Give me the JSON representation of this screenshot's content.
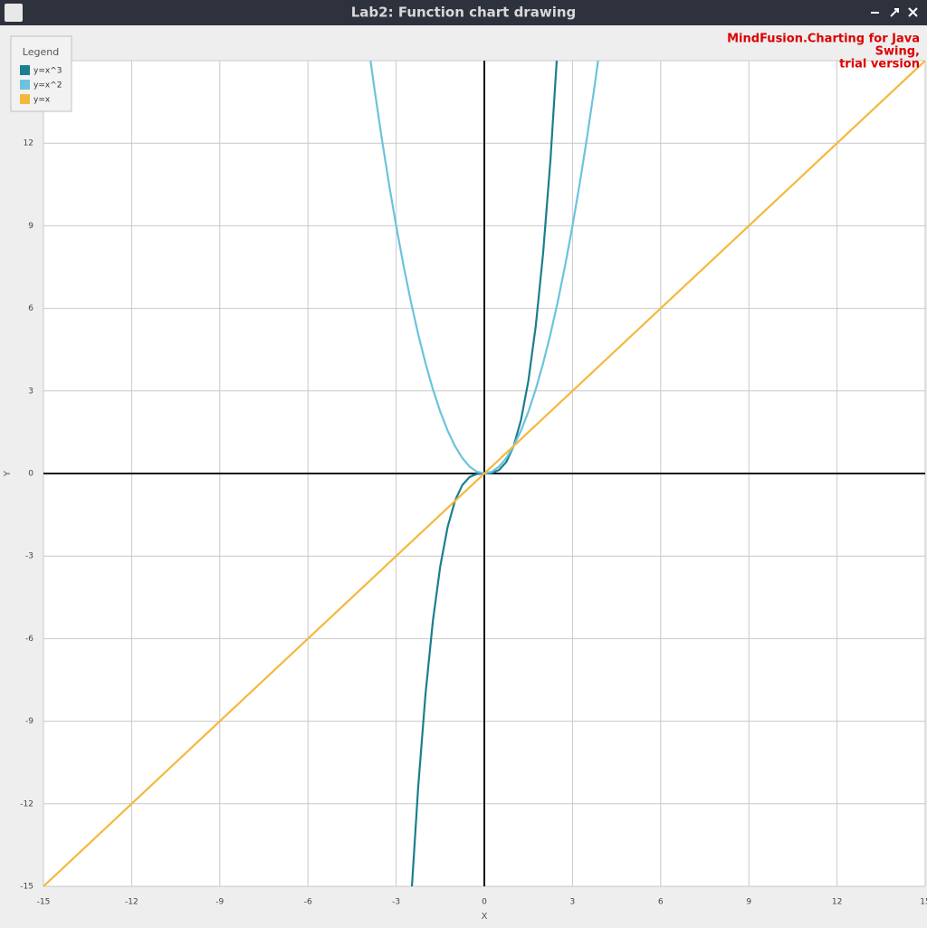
{
  "window": {
    "title": "Lab2: Function chart drawing"
  },
  "watermark": [
    "MindFusion.Charting for Java",
    "Swing,",
    "trial version"
  ],
  "chart_data": {
    "type": "line",
    "legend_title": "Legend",
    "legend": "top-left",
    "grid": true,
    "xlabel": "X",
    "ylabel": "Y",
    "xlim": [
      -15,
      15
    ],
    "ylim": [
      -15,
      15
    ],
    "xticks": [
      -15,
      -12,
      -9,
      -6,
      -3,
      0,
      3,
      6,
      9,
      12,
      15
    ],
    "yticks": [
      -15,
      -12,
      -9,
      -6,
      -3,
      0,
      3,
      6,
      9,
      12,
      15
    ],
    "series": [
      {
        "name": "y=x^3",
        "color": "#1a7f8e",
        "x": [
          -2.5,
          -2.25,
          -2,
          -1.75,
          -1.5,
          -1.25,
          -1,
          -0.75,
          -0.5,
          -0.25,
          0,
          0.25,
          0.5,
          0.75,
          1,
          1.25,
          1.5,
          1.75,
          2,
          2.25,
          2.5
        ],
        "values": [
          -15.625,
          -11.390625,
          -8,
          -5.359375,
          -3.375,
          -1.953125,
          -1,
          -0.421875,
          -0.125,
          -0.015625,
          0,
          0.015625,
          0.125,
          0.421875,
          1,
          1.953125,
          3.375,
          5.359375,
          8,
          11.390625,
          15.625
        ]
      },
      {
        "name": "y=x^2",
        "color": "#6cc3dc",
        "x": [
          -4,
          -3.75,
          -3.5,
          -3.25,
          -3,
          -2.75,
          -2.5,
          -2.25,
          -2,
          -1.75,
          -1.5,
          -1.25,
          -1,
          -0.75,
          -0.5,
          -0.25,
          0,
          0.25,
          0.5,
          0.75,
          1,
          1.25,
          1.5,
          1.75,
          2,
          2.25,
          2.5,
          2.75,
          3,
          3.25,
          3.5,
          3.75,
          4
        ],
        "values": [
          16,
          14.0625,
          12.25,
          10.5625,
          9,
          7.5625,
          6.25,
          5.0625,
          4,
          3.0625,
          2.25,
          1.5625,
          1,
          0.5625,
          0.25,
          0.0625,
          0,
          0.0625,
          0.25,
          0.5625,
          1,
          1.5625,
          2.25,
          3.0625,
          4,
          5.0625,
          6.25,
          7.5625,
          9,
          10.5625,
          12.25,
          14.0625,
          16
        ]
      },
      {
        "name": "y=x",
        "color": "#f5b83d",
        "x": [
          -15,
          15
        ],
        "values": [
          -15,
          15
        ]
      }
    ]
  }
}
